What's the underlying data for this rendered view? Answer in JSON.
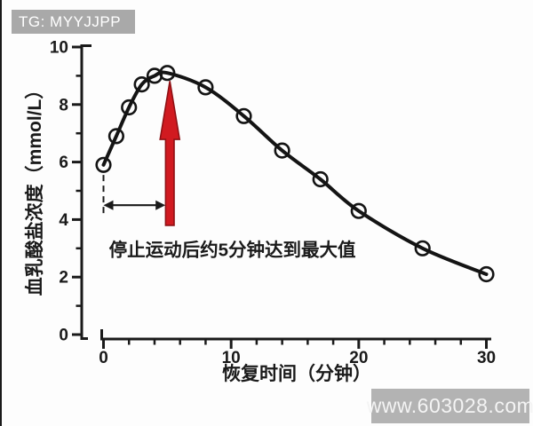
{
  "badge": {
    "text": "TG: MYYJJPP",
    "bg": "#a9a9a9",
    "fg": "#ffffff"
  },
  "watermark": {
    "text": "www.603028.com",
    "bg": "#b3b3b3",
    "fg": "#f4f4f4"
  },
  "colors": {
    "axis": "#1a1a1a",
    "curve": "#141414",
    "marker_stroke": "#141414",
    "arrow_fill": "#d11a20",
    "arrow_stroke": "#8e1014",
    "annotation_text": "#1a1a1a",
    "background": "#fdfdfd"
  },
  "chart_data": {
    "type": "line",
    "x": [
      0,
      1,
      2,
      3,
      4,
      5,
      8,
      11,
      14,
      17,
      20,
      25,
      30
    ],
    "y": [
      5.9,
      6.9,
      7.9,
      8.7,
      9.0,
      9.1,
      8.6,
      7.6,
      6.4,
      5.4,
      4.3,
      3.0,
      2.1
    ],
    "title": "",
    "xlabel": "恢复时间（分钟）",
    "ylabel": "血乳酸盐浓度（mmol/L）",
    "xlim": [
      0,
      30
    ],
    "ylim": [
      0,
      10
    ],
    "x_major_ticks": [
      0,
      10,
      20,
      30
    ],
    "x_major_tick_labels": [
      "0",
      "10",
      "20",
      "30"
    ],
    "x_minor_step": 2,
    "y_major_ticks": [
      0,
      2,
      4,
      6,
      8,
      10
    ],
    "y_major_tick_labels": [
      "0",
      "2",
      "4",
      "6",
      "8",
      "10"
    ],
    "y_minor_step": 1,
    "grid": false,
    "legend": null,
    "marker": "open-circle",
    "annotation": {
      "text": "停止运动后约5分钟达到最大值",
      "text_x": 10.1,
      "text_y": 2.95,
      "max_arrow": {
        "x": 5.2,
        "tip_y": 8.82,
        "base_y": 3.8
      },
      "span_arrow": {
        "from_x": 0,
        "to_x": 4.85,
        "at_y": 4.5
      },
      "drop_line": {
        "x": 0,
        "from_y": 5.55,
        "to_y": 4.15
      }
    }
  }
}
